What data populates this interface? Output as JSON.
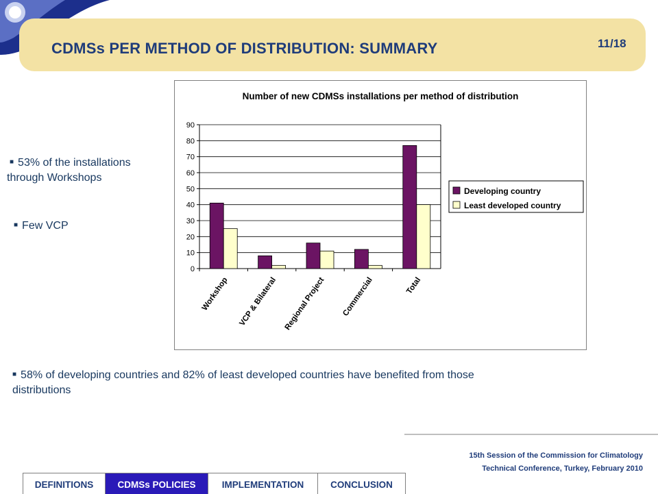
{
  "slide": {
    "title": "CDMSs PER METHOD OF DISTRIBUTION: SUMMARY",
    "number": "11/18"
  },
  "bullets": [
    {
      "line1": "53% of the installations",
      "line2": "through Workshops"
    },
    {
      "line1": "Few VCP"
    },
    {
      "line1": "58% of developing countries and 82% of least developed countries have benefited from those",
      "line2": "distributions"
    }
  ],
  "footer": {
    "line1": "15th Session of the Commission for Climatology",
    "line2": "Technical Conference, Turkey, February 2010"
  },
  "nav": {
    "tabs": [
      "DEFINITIONS",
      "CDMSs POLICIES",
      "IMPLEMENTATION",
      "CONCLUSION"
    ],
    "active_index": 1
  },
  "colors": {
    "series1": "#6b1463",
    "series2": "#ffffcc",
    "title_text": "#1f3c7a",
    "banner": "#f3e2a4",
    "active_tab": "#2a1ab8"
  },
  "chart_data": {
    "type": "bar",
    "title": "Number of new CDMSs installations per method of distribution",
    "categories": [
      "Workshop",
      "VCP & Bilateral",
      "Regional Project",
      "Commercial",
      "Total"
    ],
    "series": [
      {
        "name": "Developing country",
        "values": [
          41,
          8,
          16,
          12,
          77
        ]
      },
      {
        "name": "Least developed country",
        "values": [
          25,
          2,
          11,
          2,
          40
        ]
      }
    ],
    "ylim": [
      0,
      90
    ],
    "yticks": [
      0,
      10,
      20,
      30,
      40,
      50,
      60,
      70,
      80,
      90
    ],
    "grid": true,
    "legend_position": "right"
  }
}
